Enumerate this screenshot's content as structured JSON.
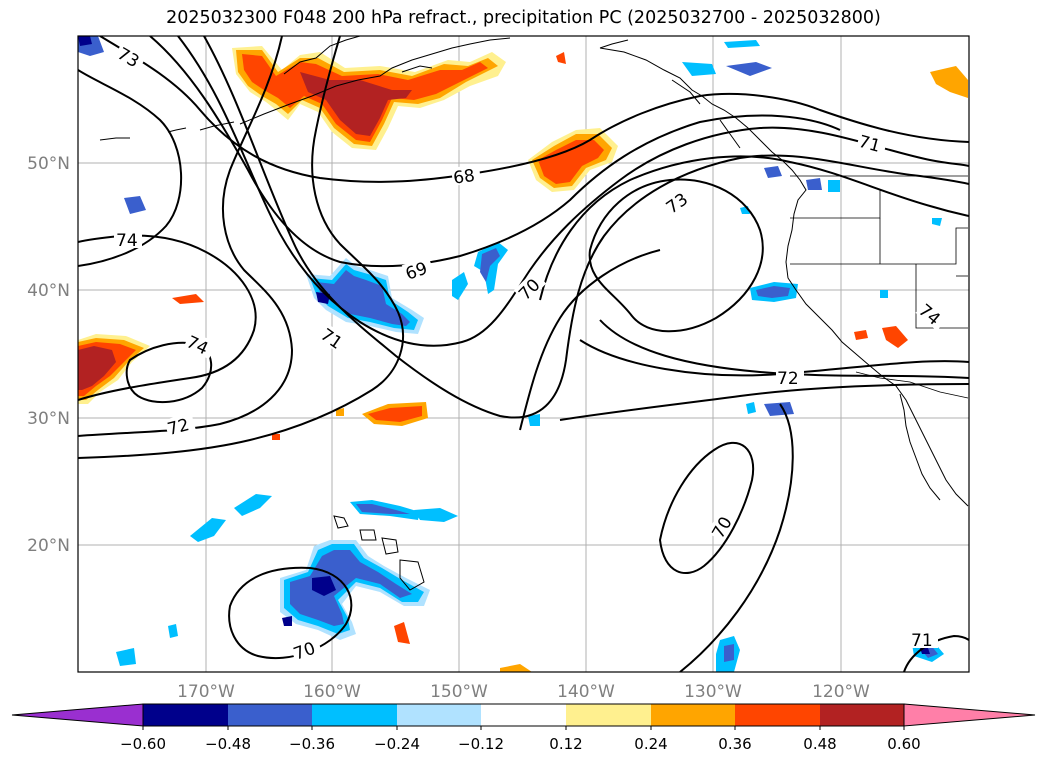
{
  "title": "2025032300 F048 200 hPa refract., precipitation PC (2025032700 - 2025032800)",
  "map": {
    "lon_labels": [
      "170°W",
      "160°W",
      "150°W",
      "140°W",
      "130°W",
      "120°W"
    ],
    "lat_labels": [
      "50°N",
      "40°N",
      "30°N",
      "20°N"
    ],
    "contour_labels": [
      "73",
      "68",
      "74",
      "69",
      "70",
      "73",
      "71",
      "71",
      "74",
      "74",
      "72",
      "72",
      "70",
      "70",
      "71"
    ]
  },
  "colorbar": {
    "tick_labels": [
      "−0.60",
      "−0.48",
      "−0.36",
      "−0.24",
      "−0.12",
      "0.12",
      "0.24",
      "0.36",
      "0.48",
      "0.60"
    ],
    "colors": [
      "#9a2fd0",
      "#00008b",
      "#3a5fcd",
      "#00bfff",
      "#b0e2ff",
      "#ffffff",
      "#fff08f",
      "#ffa500",
      "#ff4500",
      "#b22222",
      "#ff7fa8"
    ]
  },
  "colors": {
    "grid": "#b0b0b0",
    "contour": "#000000",
    "frame": "#000000"
  }
}
